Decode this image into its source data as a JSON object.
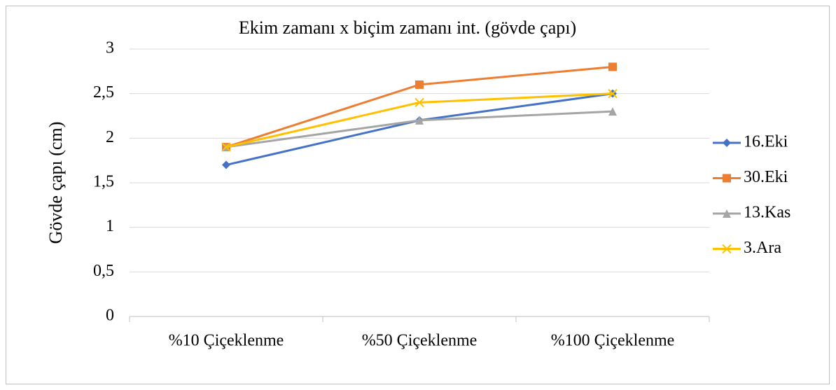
{
  "chart_data": {
    "type": "line",
    "title": "Ekim zamanı x biçim zamanı int. (gövde çapı)",
    "y_label": "Gövde çapı (cm)",
    "categories": [
      "%10 Çiçeklenme",
      "%50 Çiçeklenme",
      "%100 Çiçeklenme"
    ],
    "series": [
      {
        "name": "16.Eki",
        "color": "#4472c4",
        "marker": "diamond",
        "values": [
          1.7,
          2.2,
          2.5
        ]
      },
      {
        "name": "30.Eki",
        "color": "#ed7d31",
        "marker": "square",
        "values": [
          1.9,
          2.6,
          2.8
        ]
      },
      {
        "name": "13.Kas",
        "color": "#a5a5a5",
        "marker": "triangle",
        "values": [
          1.9,
          2.2,
          2.3
        ]
      },
      {
        "name": "3.Ara",
        "color": "#ffc000",
        "marker": "x",
        "values": [
          1.9,
          2.4,
          2.5
        ]
      }
    ],
    "ylim": [
      0,
      3
    ],
    "yticks": [
      0,
      {
        "value": 0.5,
        "label": "0,5"
      },
      1,
      {
        "value": 1.5,
        "label": "1,5"
      },
      2,
      {
        "value": 2.5,
        "label": "2,5"
      },
      3
    ],
    "grid": true,
    "legend": "right"
  }
}
